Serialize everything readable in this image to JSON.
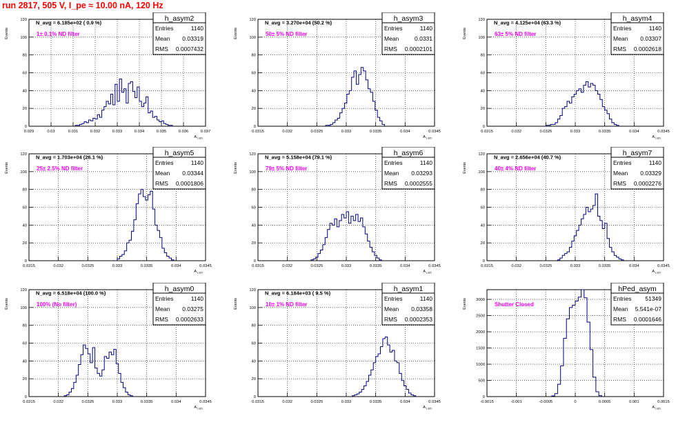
{
  "page_title": "run 2817,   505 V, I_pe ≈ 10.00 nA, 120 Hz",
  "colors": {
    "title": "#ff0000",
    "annotation": "#ff00ff",
    "histogram": "#00007f",
    "grid": "#000000"
  },
  "chart_data": [
    {
      "type": "histogram",
      "name": "h_asym2",
      "stats": {
        "entries_label": "Entries",
        "entries": "1140",
        "mean_label": "Mean",
        "mean": "0.03319",
        "rms_label": "RMS",
        "rms": "0.0007432"
      },
      "n_avg_text": "N_avg = 6.185e+02 ( 0.9 %)",
      "filter_text": "1± 0.1% ND filter",
      "ylabel": "Events",
      "xlabel": "A_{LED}",
      "xlim": [
        0.029,
        0.037
      ],
      "ylim": [
        0,
        120
      ],
      "grid": true,
      "x_ticks": [
        "0.029",
        "0.03",
        "0.031",
        "0.032",
        "0.033",
        "0.034",
        "0.035",
        "0.036",
        "0.037"
      ],
      "y_ticks": [
        "0",
        "20",
        "40",
        "60",
        "80",
        "100",
        "120"
      ],
      "counts": [
        1,
        1,
        2,
        3,
        5,
        4,
        7,
        6,
        9,
        8,
        13,
        10,
        18,
        22,
        28,
        25,
        36,
        24,
        47,
        28,
        53,
        38,
        42,
        26,
        48,
        50,
        39,
        32,
        44,
        28,
        22,
        26,
        33,
        15,
        17,
        10,
        11,
        7,
        5,
        6,
        3,
        2,
        1,
        1
      ],
      "x_from": 0.0311,
      "bin_width": 0.0001
    },
    {
      "type": "histogram",
      "name": "h_asym3",
      "stats": {
        "entries_label": "Entries",
        "entries": "1140",
        "mean_label": "Mean",
        "mean": "0.0331",
        "rms_label": "RMS",
        "rms": "0.0002101"
      },
      "n_avg_text": "N_avg = 3.270e+04 (50.2 %)",
      "filter_text": "50± 5% ND filter",
      "ylabel": "Events",
      "xlabel": "A_{LED}",
      "xlim": [
        0.0315,
        0.0345
      ],
      "ylim": [
        0,
        120
      ],
      "grid": true,
      "x_ticks": [
        "0.0315",
        "0.032",
        "0.0325",
        "0.033",
        "0.0335",
        "0.034",
        "0.0345"
      ],
      "y_ticks": [
        "0",
        "20",
        "40",
        "60",
        "80",
        "100",
        "120"
      ],
      "counts": [
        1,
        1,
        2,
        4,
        7,
        9,
        15,
        20,
        26,
        36,
        40,
        55,
        62,
        47,
        58,
        66,
        62,
        52,
        42,
        38,
        28,
        18,
        10,
        6,
        2
      ],
      "x_from": 0.03265,
      "bin_width": 4e-05
    },
    {
      "type": "histogram",
      "name": "h_asym4",
      "stats": {
        "entries_label": "Entries",
        "entries": "1140",
        "mean_label": "Mean",
        "mean": "0.03307",
        "rms_label": "RMS",
        "rms": "0.0002618"
      },
      "n_avg_text": "N_avg = 4.125e+04 (63.3 %)",
      "filter_text": "63± 5% ND filter",
      "ylabel": "Events",
      "xlabel": "A_{LED}",
      "xlim": [
        0.0315,
        0.0345
      ],
      "ylim": [
        0,
        120
      ],
      "grid": true,
      "x_ticks": [
        "0.0315",
        "0.032",
        "0.0325",
        "0.033",
        "0.0335",
        "0.034",
        "0.0345"
      ],
      "y_ticks": [
        "0",
        "20",
        "40",
        "60",
        "80",
        "100",
        "120"
      ],
      "counts": [
        1,
        1,
        2,
        2,
        4,
        8,
        12,
        20,
        22,
        28,
        26,
        33,
        36,
        40,
        42,
        38,
        46,
        50,
        44,
        48,
        46,
        40,
        36,
        30,
        22,
        18,
        14,
        8,
        4,
        2,
        1
      ],
      "x_from": 0.0325,
      "bin_width": 4e-05
    },
    {
      "type": "histogram",
      "name": "h_asym5",
      "stats": {
        "entries_label": "Entries",
        "entries": "1140",
        "mean_label": "Mean",
        "mean": "0.03344",
        "rms_label": "RMS",
        "rms": "0.0001806"
      },
      "n_avg_text": "N_avg = 1.703e+04 (26.1 %)",
      "filter_text": "25± 2.5% ND filter",
      "ylabel": "Events",
      "xlabel": "A_{LED}",
      "xlim": [
        0.0315,
        0.0345
      ],
      "ylim": [
        0,
        120
      ],
      "grid": true,
      "x_ticks": [
        "0.0315",
        "0.032",
        "0.0325",
        "0.033",
        "0.0335",
        "0.034",
        "0.0345"
      ],
      "y_ticks": [
        "0",
        "20",
        "40",
        "60",
        "80",
        "100",
        "120"
      ],
      "counts": [
        2,
        5,
        7,
        11,
        20,
        23,
        33,
        46,
        64,
        75,
        80,
        72,
        68,
        74,
        78,
        58,
        40,
        34,
        26,
        14,
        9,
        5,
        3,
        1
      ],
      "x_from": 0.033,
      "bin_width": 4e-05
    },
    {
      "type": "histogram",
      "name": "h_asym6",
      "stats": {
        "entries_label": "Entries",
        "entries": "1140",
        "mean_label": "Mean",
        "mean": "0.03293",
        "rms_label": "RMS",
        "rms": "0.0002555"
      },
      "n_avg_text": "N_avg = 5.158e+04 (79.1 %)",
      "filter_text": "79± 5% ND filter",
      "ylabel": "Events",
      "xlabel": "A_{LED}",
      "xlim": [
        0.0315,
        0.0345
      ],
      "ylim": [
        0,
        120
      ],
      "grid": true,
      "x_ticks": [
        "0.0315",
        "0.032",
        "0.0325",
        "0.033",
        "0.0335",
        "0.034",
        "0.0345"
      ],
      "y_ticks": [
        "0",
        "20",
        "40",
        "60",
        "80",
        "100",
        "120"
      ],
      "counts": [
        1,
        2,
        4,
        8,
        12,
        18,
        26,
        35,
        42,
        40,
        47,
        38,
        45,
        52,
        48,
        55,
        42,
        50,
        45,
        52,
        44,
        48,
        38,
        30,
        22,
        15,
        10,
        6,
        3,
        1
      ],
      "x_from": 0.0324,
      "bin_width": 4e-05
    },
    {
      "type": "histogram",
      "name": "h_asym7",
      "stats": {
        "entries_label": "Entries",
        "entries": "1140",
        "mean_label": "Mean",
        "mean": "0.03329",
        "rms_label": "RMS",
        "rms": "0.0002276"
      },
      "n_avg_text": "N_avg = 2.656e+04 (40.7 %)",
      "filter_text": "40± 4% ND filter",
      "ylabel": "Events",
      "xlabel": "A_{LED}",
      "xlim": [
        0.0315,
        0.0345
      ],
      "ylim": [
        0,
        120
      ],
      "grid": true,
      "x_ticks": [
        "0.0315",
        "0.032",
        "0.0325",
        "0.033",
        "0.0335",
        "0.034",
        "0.0345"
      ],
      "y_ticks": [
        "0",
        "20",
        "40",
        "60",
        "80",
        "100",
        "120"
      ],
      "counts": [
        1,
        3,
        6,
        8,
        10,
        15,
        22,
        28,
        34,
        40,
        47,
        52,
        60,
        55,
        58,
        62,
        75,
        50,
        45,
        36,
        42,
        25,
        15,
        10,
        6,
        4,
        2,
        1
      ],
      "x_from": 0.0327,
      "bin_width": 4e-05
    },
    {
      "type": "histogram",
      "name": "h_asym0",
      "stats": {
        "entries_label": "Entries",
        "entries": "1140",
        "mean_label": "Mean",
        "mean": "0.03275",
        "rms_label": "RMS",
        "rms": "0.0002633"
      },
      "n_avg_text": "N_avg = 6.518e+04 (100.0 %)",
      "filter_text": "100% (No filter)",
      "ylabel": "Events",
      "xlabel": "A_{LED}",
      "xlim": [
        0.0315,
        0.0345
      ],
      "ylim": [
        0,
        120
      ],
      "grid": true,
      "x_ticks": [
        "0.0315",
        "0.032",
        "0.0325",
        "0.033",
        "0.0335",
        "0.034",
        "0.0345"
      ],
      "y_ticks": [
        "0",
        "20",
        "40",
        "60",
        "80",
        "100",
        "120"
      ],
      "counts": [
        1,
        2,
        5,
        9,
        16,
        24,
        36,
        47,
        58,
        54,
        48,
        38,
        55,
        32,
        26,
        23,
        30,
        45,
        43,
        50,
        47,
        53,
        37,
        26,
        16,
        10,
        5,
        2,
        1
      ],
      "x_from": 0.0321,
      "bin_width": 4e-05
    },
    {
      "type": "histogram",
      "name": "h_asym1",
      "stats": {
        "entries_label": "Entries",
        "entries": "1140",
        "mean_label": "Mean",
        "mean": "0.03358",
        "rms_label": "RMS",
        "rms": "0.0002353"
      },
      "n_avg_text": "N_avg = 6.184e+03 ( 9.5 %)",
      "filter_text": "10± 1% ND filter",
      "ylabel": "Events",
      "xlabel": "A_{LED}",
      "xlim": [
        0.0315,
        0.0345
      ],
      "ylim": [
        0,
        120
      ],
      "grid": true,
      "x_ticks": [
        "0.0315",
        "0.032",
        "0.0325",
        "0.033",
        "0.0335",
        "0.034",
        "0.0345"
      ],
      "y_ticks": [
        "0",
        "20",
        "40",
        "60",
        "80",
        "100",
        "120"
      ],
      "counts": [
        1,
        2,
        3,
        5,
        8,
        12,
        17,
        24,
        30,
        38,
        45,
        48,
        56,
        65,
        67,
        58,
        50,
        52,
        40,
        38,
        26,
        18,
        12,
        8,
        4,
        2,
        1
      ],
      "x_from": 0.0331,
      "bin_width": 4e-05
    },
    {
      "type": "histogram",
      "name": "hPed_asym",
      "stats": {
        "entries_label": "Entries",
        "entries": "51349",
        "mean_label": "Mean",
        "mean": "5.541e-07",
        "rms_label": "RMS",
        "rms": "0.0001646"
      },
      "filter_text": "Shutter Closed",
      "ylabel": "Events",
      "xlabel": "A_{LED}",
      "xlim": [
        -0.0015,
        0.0015
      ],
      "ylim": [
        0,
        3300
      ],
      "grid": true,
      "x_ticks": [
        "-0.0015",
        "-0.001",
        "-0.0005",
        "0",
        "0.0005",
        "0.001",
        "0.0015"
      ],
      "y_ticks": [
        "0",
        "500",
        "1000",
        "1500",
        "2000",
        "2500",
        "3000"
      ],
      "counts": [
        20,
        90,
        380,
        950,
        1800,
        2400,
        2750,
        2820,
        2950,
        3070,
        3300,
        3050,
        2300,
        1450,
        600,
        150,
        30
      ],
      "x_from": -0.0004,
      "bin_width": 5e-05
    }
  ]
}
